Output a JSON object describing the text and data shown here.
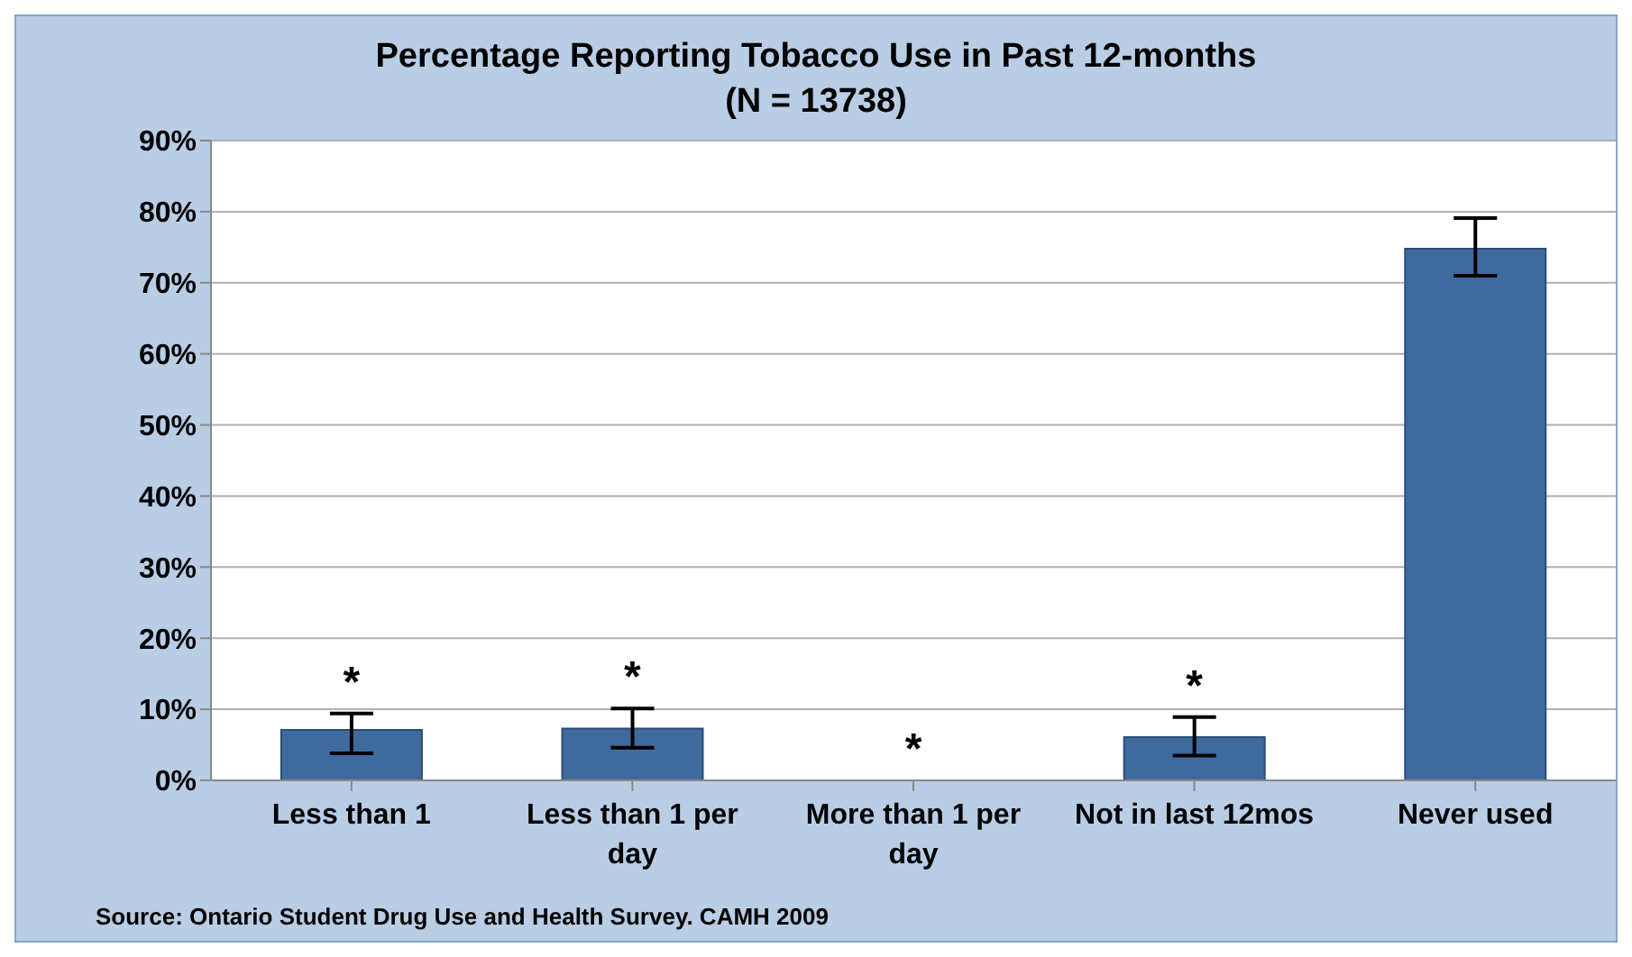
{
  "chart_data": {
    "type": "bar",
    "title": "Percentage Reporting Tobacco Use in Past 12-months",
    "subtitle": "(N = 13738)",
    "categories": [
      "Less than 1",
      "Less than 1 per day",
      "More than 1 per day",
      "Not in last 12mos",
      "Never used"
    ],
    "values": [
      7.1,
      7.3,
      null,
      6.1,
      74.8
    ],
    "errors": [
      [
        3.8,
        9.4
      ],
      [
        4.6,
        10.1
      ],
      null,
      [
        3.5,
        8.9
      ],
      [
        71,
        79.1
      ]
    ],
    "color": "#3f6a9e",
    "ylim": [
      0,
      90
    ],
    "yticks": [
      {
        "value": 0,
        "label": "0%"
      },
      {
        "value": 10,
        "label": "10%"
      },
      {
        "value": 20,
        "label": "20%"
      },
      {
        "value": 30,
        "label": "30%"
      },
      {
        "value": 40,
        "label": "40%"
      },
      {
        "value": 50,
        "label": "50%"
      },
      {
        "value": 60,
        "label": "60%"
      },
      {
        "value": 70,
        "label": "70%"
      },
      {
        "value": 80,
        "label": "80%"
      },
      {
        "value": 90,
        "label": "90%"
      }
    ],
    "grid": "y",
    "legend": false,
    "value_labels": [
      "*",
      "*",
      "*",
      "*",
      null
    ],
    "annotations": [
      "Source: Ontario Student Drug Use and Health Survey. CAMH 2009"
    ]
  }
}
